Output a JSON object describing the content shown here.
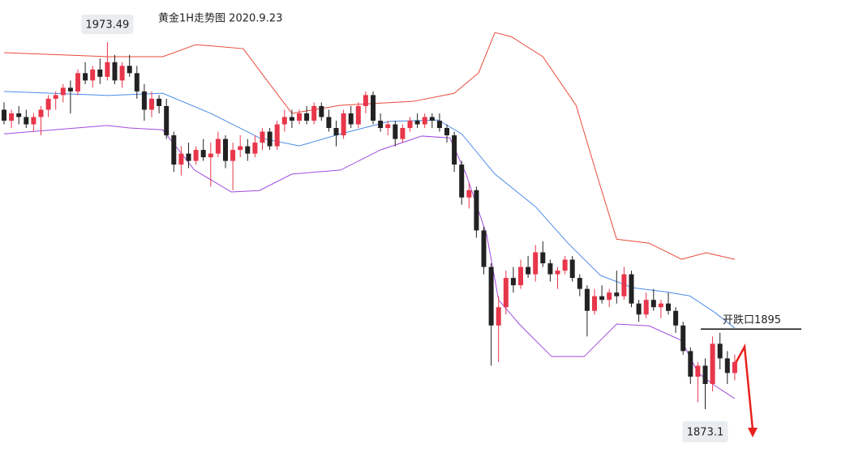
{
  "chart_data": {
    "type": "candlestick",
    "title": "黄金1H走势图  2020.9.23",
    "ylim": [
      1861.4,
      1985
    ],
    "up_color": "#e8364a",
    "down_color": "#222222",
    "candles": [
      [
        1955,
        1957,
        1951,
        1952
      ],
      [
        1952,
        1955,
        1950,
        1954
      ],
      [
        1954,
        1956,
        1951,
        1953
      ],
      [
        1953,
        1955,
        1950,
        1951
      ],
      [
        1951,
        1954,
        1949,
        1953
      ],
      [
        1953,
        1956,
        1948,
        1955
      ],
      [
        1955,
        1959,
        1953,
        1958
      ],
      [
        1958,
        1960,
        1955,
        1959
      ],
      [
        1959,
        1962,
        1957,
        1961
      ],
      [
        1961,
        1963,
        1954,
        1960
      ],
      [
        1960,
        1966,
        1959,
        1965
      ],
      [
        1965,
        1968,
        1962,
        1963
      ],
      [
        1963,
        1967,
        1961,
        1966
      ],
      [
        1966,
        1969,
        1962,
        1964
      ],
      [
        1964,
        1973.49,
        1963,
        1968
      ],
      [
        1968,
        1970,
        1962,
        1963
      ],
      [
        1963,
        1968,
        1961,
        1967
      ],
      [
        1967,
        1970,
        1964,
        1965
      ],
      [
        1965,
        1967,
        1958,
        1960
      ],
      [
        1960,
        1962,
        1952,
        1955
      ],
      [
        1955,
        1960,
        1953,
        1958
      ],
      [
        1958,
        1959,
        1954,
        1956
      ],
      [
        1956,
        1958,
        1947,
        1948
      ],
      [
        1948,
        1949,
        1938,
        1940
      ],
      [
        1940,
        1945,
        1937,
        1943
      ],
      [
        1943,
        1946,
        1939,
        1941
      ],
      [
        1941,
        1945,
        1940,
        1944
      ],
      [
        1944,
        1947,
        1941,
        1942
      ],
      [
        1942,
        1946,
        1934,
        1943
      ],
      [
        1943,
        1949,
        1942,
        1947
      ],
      [
        1947,
        1948,
        1939,
        1941
      ],
      [
        1941,
        1946,
        1933,
        1944
      ],
      [
        1944,
        1948,
        1942,
        1945
      ],
      [
        1945,
        1947,
        1941,
        1943
      ],
      [
        1943,
        1948,
        1942,
        1946
      ],
      [
        1946,
        1950,
        1944,
        1949
      ],
      [
        1949,
        1950,
        1944,
        1945
      ],
      [
        1945,
        1952,
        1944,
        1951
      ],
      [
        1951,
        1955,
        1949,
        1953
      ],
      [
        1953,
        1955,
        1950,
        1952
      ],
      [
        1952,
        1955,
        1951,
        1954
      ],
      [
        1954,
        1956,
        1951,
        1952
      ],
      [
        1952,
        1957,
        1951,
        1956
      ],
      [
        1956,
        1957,
        1952,
        1953
      ],
      [
        1953,
        1955,
        1949,
        1950
      ],
      [
        1950,
        1952,
        1945,
        1948
      ],
      [
        1948,
        1955,
        1947,
        1954
      ],
      [
        1954,
        1956,
        1950,
        1951
      ],
      [
        1951,
        1957,
        1950,
        1956
      ],
      [
        1956,
        1960,
        1954,
        1959
      ],
      [
        1959,
        1960,
        1951,
        1952
      ],
      [
        1952,
        1954,
        1949,
        1950
      ],
      [
        1950,
        1952,
        1948,
        1951
      ],
      [
        1951,
        1952,
        1945,
        1947
      ],
      [
        1947,
        1951,
        1946,
        1950
      ],
      [
        1950,
        1953,
        1949,
        1952
      ],
      [
        1952,
        1954,
        1950,
        1951
      ],
      [
        1951,
        1954,
        1950,
        1953
      ],
      [
        1953,
        1954,
        1950,
        1952
      ],
      [
        1952,
        1954,
        1949,
        1950
      ],
      [
        1950,
        1951,
        1946,
        1948
      ],
      [
        1948,
        1949,
        1938,
        1940
      ],
      [
        1940,
        1941,
        1929,
        1931
      ],
      [
        1931,
        1935,
        1928,
        1933
      ],
      [
        1933,
        1934,
        1920,
        1922
      ],
      [
        1922,
        1923,
        1910,
        1912
      ],
      [
        1912,
        1913,
        1885,
        1896
      ],
      [
        1896,
        1904,
        1886,
        1901
      ],
      [
        1901,
        1911,
        1899,
        1909
      ],
      [
        1909,
        1912,
        1905,
        1907
      ],
      [
        1907,
        1914,
        1906,
        1912
      ],
      [
        1912,
        1915,
        1909,
        1910
      ],
      [
        1910,
        1918,
        1908,
        1916
      ],
      [
        1916,
        1919,
        1912,
        1913
      ],
      [
        1913,
        1914,
        1908,
        1910
      ],
      [
        1910,
        1912,
        1906,
        1911
      ],
      [
        1911,
        1915,
        1910,
        1914
      ],
      [
        1914,
        1915,
        1908,
        1909
      ],
      [
        1909,
        1910,
        1904,
        1906
      ],
      [
        1906,
        1907,
        1893,
        1900
      ],
      [
        1900,
        1906,
        1899,
        1904
      ],
      [
        1904,
        1907,
        1902,
        1903
      ],
      [
        1903,
        1906,
        1901,
        1905
      ],
      [
        1905,
        1911,
        1902,
        1904
      ],
      [
        1904,
        1912,
        1903,
        1910
      ],
      [
        1910,
        1911,
        1901,
        1902
      ],
      [
        1902,
        1903,
        1897,
        1899
      ],
      [
        1899,
        1905,
        1898,
        1903
      ],
      [
        1903,
        1906,
        1900,
        1901
      ],
      [
        1901,
        1903,
        1898,
        1902
      ],
      [
        1902,
        1905,
        1899,
        1900
      ],
      [
        1900,
        1901,
        1894,
        1896
      ],
      [
        1896,
        1897,
        1888,
        1889
      ],
      [
        1889,
        1890,
        1880,
        1882
      ],
      [
        1882,
        1886,
        1875,
        1885
      ],
      [
        1885,
        1887,
        1873.1,
        1880
      ],
      [
        1880,
        1893,
        1878,
        1891
      ],
      [
        1891,
        1894,
        1884,
        1887
      ],
      [
        1887,
        1889,
        1880,
        1883
      ],
      [
        1883,
        1888,
        1881,
        1886
      ]
    ],
    "series": [
      {
        "color": "#e8493a",
        "x": [
          0,
          14,
          21.5,
          26,
          32.4,
          35.7,
          39,
          45.6,
          55.5,
          61,
          64.3,
          66.5,
          68.7,
          73,
          77.5,
          80.8,
          83,
          87.4,
          91.8,
          95.1,
          99
        ],
        "values": [
          1970.6,
          1969.5,
          1969.5,
          1972.8,
          1971.7,
          1962.8,
          1954.0,
          1956.2,
          1957.3,
          1959.5,
          1965.1,
          1976.1,
          1975.0,
          1969.5,
          1956.2,
          1934.0,
          1919.6,
          1918.5,
          1914.1,
          1915.9,
          1914.1
        ]
      },
      {
        "color": "#4a8be8",
        "x": [
          0,
          14,
          21.5,
          28,
          34.6,
          40,
          45.6,
          52.2,
          58.8,
          62,
          66.5,
          72,
          76.4,
          80.8,
          85.2,
          89.6,
          92.9,
          96.2,
          99
        ],
        "values": [
          1960.0,
          1958.9,
          1959.5,
          1954.0,
          1947.3,
          1945.1,
          1948.4,
          1951.8,
          1952.2,
          1948.4,
          1937.4,
          1928.5,
          1918.5,
          1909.7,
          1906.3,
          1905.2,
          1904.1,
          1899.7,
          1895.3
        ]
      },
      {
        "color": "#a24be0",
        "x": [
          0,
          14,
          17,
          21.5,
          25.8,
          30.8,
          34.6,
          39,
          45.6,
          51,
          56.6,
          60.4,
          62.6,
          65.4,
          67,
          69.8,
          74.2,
          78.6,
          83,
          87.4,
          91.8,
          94,
          96.2,
          99
        ],
        "values": [
          1948.4,
          1950.7,
          1950.0,
          1949.5,
          1938.5,
          1932.5,
          1932.9,
          1937.4,
          1938.5,
          1944.0,
          1947.8,
          1947.3,
          1937.4,
          1920.7,
          1903.0,
          1896.4,
          1887.5,
          1887.5,
          1896.4,
          1895.9,
          1891.9,
          1883.1,
          1879.7,
          1876.0
        ]
      }
    ],
    "annotations": [
      {
        "label": "1973.49",
        "value": 1973.49
      },
      {
        "label": "开跌口1895",
        "value": 1895
      },
      {
        "label": "1873.1",
        "value": 1873.1
      }
    ]
  }
}
